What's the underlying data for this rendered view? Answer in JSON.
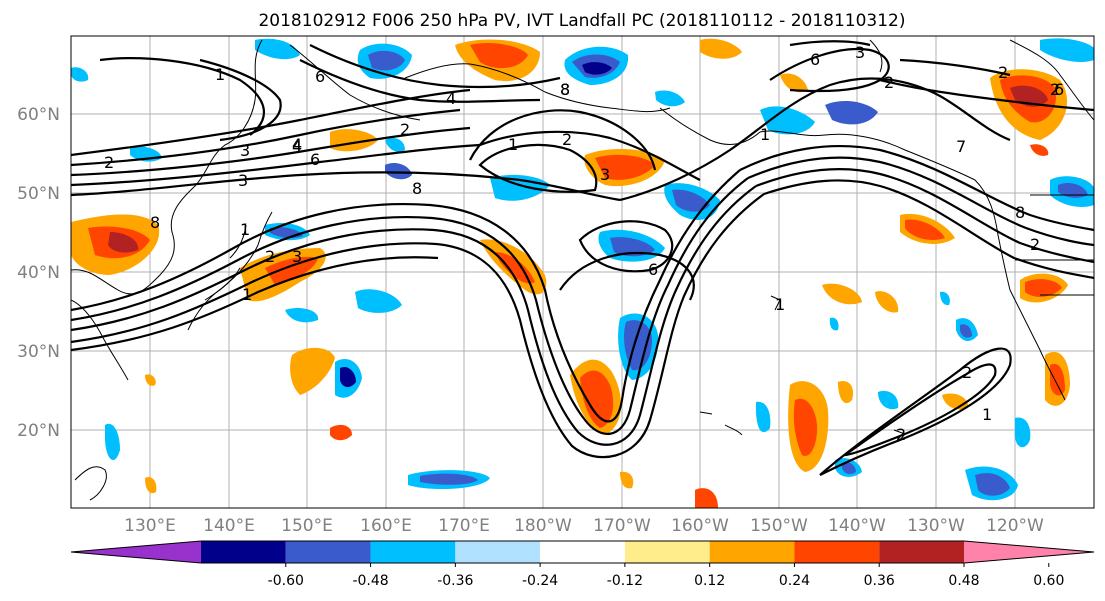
{
  "title": "2018102912 F006 250 hPa PV, IVT Landfall PC (2018110112 - 2018110312)",
  "lat_labels": [
    "60°N",
    "50°N",
    "40°N",
    "30°N",
    "20°N"
  ],
  "lon_labels": [
    "130°E",
    "140°E",
    "150°E",
    "160°E",
    "170°E",
    "180°W",
    "170°W",
    "160°W",
    "150°W",
    "140°W",
    "130°W",
    "120°W"
  ],
  "colorbar": {
    "colors": [
      "#9932CC",
      "#00008B",
      "#3A5BCC",
      "#00BFFF",
      "#B0E2FF",
      "#FFFFFF",
      "#FFEC8B",
      "#FFA500",
      "#FF4500",
      "#B22222",
      "#FF82AB"
    ],
    "tick_labels": [
      "-0.60",
      "-0.48",
      "-0.36",
      "-0.24",
      "-0.12",
      "0.12",
      "0.24",
      "0.36",
      "0.48",
      "0.60"
    ]
  },
  "contour_labels": [
    "1",
    "2",
    "3",
    "4",
    "6",
    "8",
    "1",
    "2",
    "3",
    "4",
    "6",
    "8",
    "1",
    "2",
    "3",
    "2",
    "7",
    "8",
    "1",
    "2",
    "6",
    "1",
    "2",
    "6",
    "8",
    "3",
    "8",
    "2",
    "3",
    "4",
    "6",
    "2",
    "1",
    "2",
    "2",
    "1"
  ]
}
